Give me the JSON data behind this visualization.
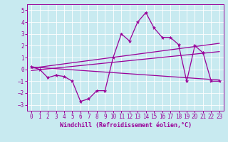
{
  "xlabel": "Windchill (Refroidissement éolien,°C)",
  "background_color": "#c8eaf0",
  "line_color": "#990099",
  "grid_color": "#ffffff",
  "xlim": [
    -0.5,
    23.5
  ],
  "ylim": [
    -3.5,
    5.5
  ],
  "yticks": [
    -3,
    -2,
    -1,
    0,
    1,
    2,
    3,
    4,
    5
  ],
  "xticks": [
    0,
    1,
    2,
    3,
    4,
    5,
    6,
    7,
    8,
    9,
    10,
    11,
    12,
    13,
    14,
    15,
    16,
    17,
    18,
    19,
    20,
    21,
    22,
    23
  ],
  "series1_x": [
    0,
    1,
    2,
    3,
    4,
    5,
    6,
    7,
    8,
    9,
    10,
    11,
    12,
    13,
    14,
    15,
    16,
    17,
    18,
    19,
    20,
    21,
    22,
    23
  ],
  "series1_y": [
    0.2,
    0.0,
    -0.7,
    -0.5,
    -0.6,
    -1.0,
    -2.7,
    -2.5,
    -1.8,
    -1.8,
    1.0,
    3.0,
    2.4,
    4.0,
    4.8,
    3.5,
    2.7,
    2.7,
    2.1,
    -1.0,
    2.0,
    1.4,
    -1.0,
    -1.0
  ],
  "series2_x": [
    0,
    23
  ],
  "series2_y": [
    0.2,
    -0.9
  ],
  "series3_x": [
    0,
    23
  ],
  "series3_y": [
    -0.1,
    1.5
  ],
  "series4_x": [
    0,
    23
  ],
  "series4_y": [
    0.1,
    2.2
  ],
  "tick_fontsize": 5.5,
  "xlabel_fontsize": 6.0
}
